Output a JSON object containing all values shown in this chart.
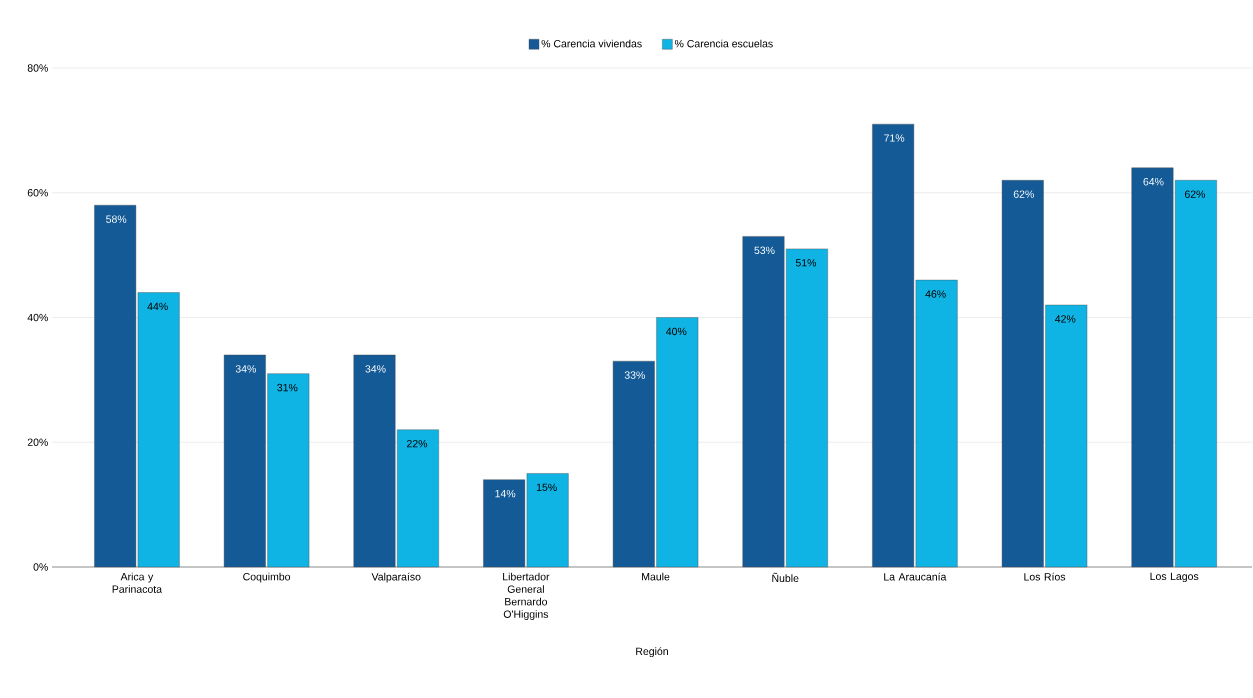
{
  "chart_data": {
    "type": "bar",
    "xlabel": "Región",
    "legend": "top",
    "grid": "y",
    "categories": [
      "Arica y Parinacota",
      "Coquimbo",
      "Valparaíso",
      "Libertador General Bernardo O'Higgins",
      "Maule",
      "Ñuble",
      "La Araucanía",
      "Los Ríos",
      "Los Lagos"
    ],
    "ylim": [
      0,
      80
    ],
    "yticks": [
      {
        "value": 0,
        "label": "0%"
      },
      {
        "value": 20,
        "label": "20%"
      },
      {
        "value": 40,
        "label": "40%"
      },
      {
        "value": 60,
        "label": "60%"
      },
      {
        "value": 80,
        "label": "80%"
      }
    ],
    "series": [
      {
        "name": "% Carencia viviendas",
        "color": "#135a96",
        "values": [
          58,
          34,
          34,
          14,
          33,
          53,
          71,
          62,
          64
        ],
        "value_labels": [
          "58%",
          "34%",
          "34%",
          "14%",
          "33%",
          "53%",
          "71%",
          "62%",
          "64%"
        ]
      },
      {
        "name": "% Carencia escuelas",
        "color": "#0fb4e4",
        "values": [
          44,
          31,
          22,
          15,
          40,
          51,
          46,
          42,
          62
        ],
        "value_labels": [
          "44%",
          "31%",
          "22%",
          "15%",
          "40%",
          "51%",
          "46%",
          "42%",
          "62%"
        ]
      }
    ]
  }
}
